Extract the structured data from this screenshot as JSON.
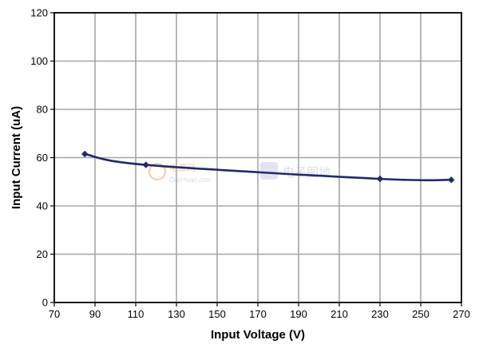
{
  "chart_data": {
    "type": "line",
    "title": "",
    "xlabel": "Input Voltage (V)",
    "ylabel": "Input Current (uA)",
    "xlim": [
      70,
      270
    ],
    "ylim": [
      0,
      120
    ],
    "xticks": [
      70,
      90,
      110,
      130,
      150,
      170,
      190,
      210,
      230,
      250,
      270
    ],
    "yticks": [
      0,
      20,
      40,
      60,
      80,
      100,
      120
    ],
    "grid": true,
    "legend": "none",
    "series": [
      {
        "color": "#1f2a6b",
        "marker": "diamond",
        "x": [
          85,
          115,
          230,
          265
        ],
        "y": [
          61.5,
          57,
          51.2,
          50.8
        ]
      }
    ]
  },
  "watermarks": {
    "left_top": "电源网",
    "left_bottom": "DianYuan.com",
    "right": "电子图地"
  }
}
